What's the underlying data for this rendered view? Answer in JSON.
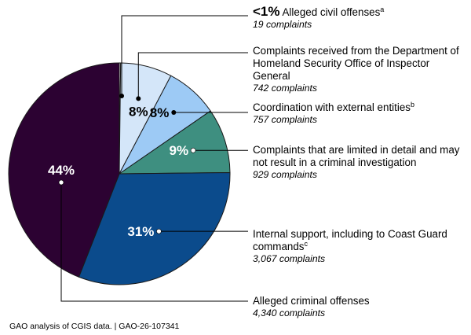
{
  "chart_data": {
    "type": "pie",
    "title": "",
    "units": "complaints",
    "colors": {
      "slice_lt1": "#ffffff",
      "slice_8a": "#d4e6f9",
      "slice_8b": "#9dcaf5",
      "slice_9": "#3e8f80",
      "slice_31": "#0b4b8c",
      "slice_44": "#2c0232",
      "outline": "#1a1a1a"
    },
    "slices": [
      {
        "id": "lt1",
        "percent_label": "<1%",
        "value": 19,
        "name": "Alleged civil offenses",
        "footnote": "a",
        "count_text": "19 complaints"
      },
      {
        "id": "8a",
        "percent_label": "8%",
        "value": 742,
        "name": "Complaints received from the Department of Homeland Security Office of Inspector General",
        "footnote": "",
        "count_text": "742 complaints"
      },
      {
        "id": "8b",
        "percent_label": "8%",
        "value": 757,
        "name": "Coordination with external entities",
        "footnote": "b",
        "count_text": "757 complaints"
      },
      {
        "id": "9",
        "percent_label": "9%",
        "value": 929,
        "name": "Complaints that are limited in detail and may not result in a criminal investigation",
        "footnote": "",
        "count_text": "929 complaints"
      },
      {
        "id": "31",
        "percent_label": "31%",
        "value": 3067,
        "name": "Internal support, including to Coast Guard commands",
        "footnote": "c",
        "count_text": "3,067 complaints"
      },
      {
        "id": "44",
        "percent_label": "44%",
        "value": 4340,
        "name": "Alleged criminal offenses",
        "footnote": "",
        "count_text": "4,340 complaints"
      }
    ],
    "source_note": "GAO analysis of CGIS data.  |  GAO-26-107341"
  }
}
